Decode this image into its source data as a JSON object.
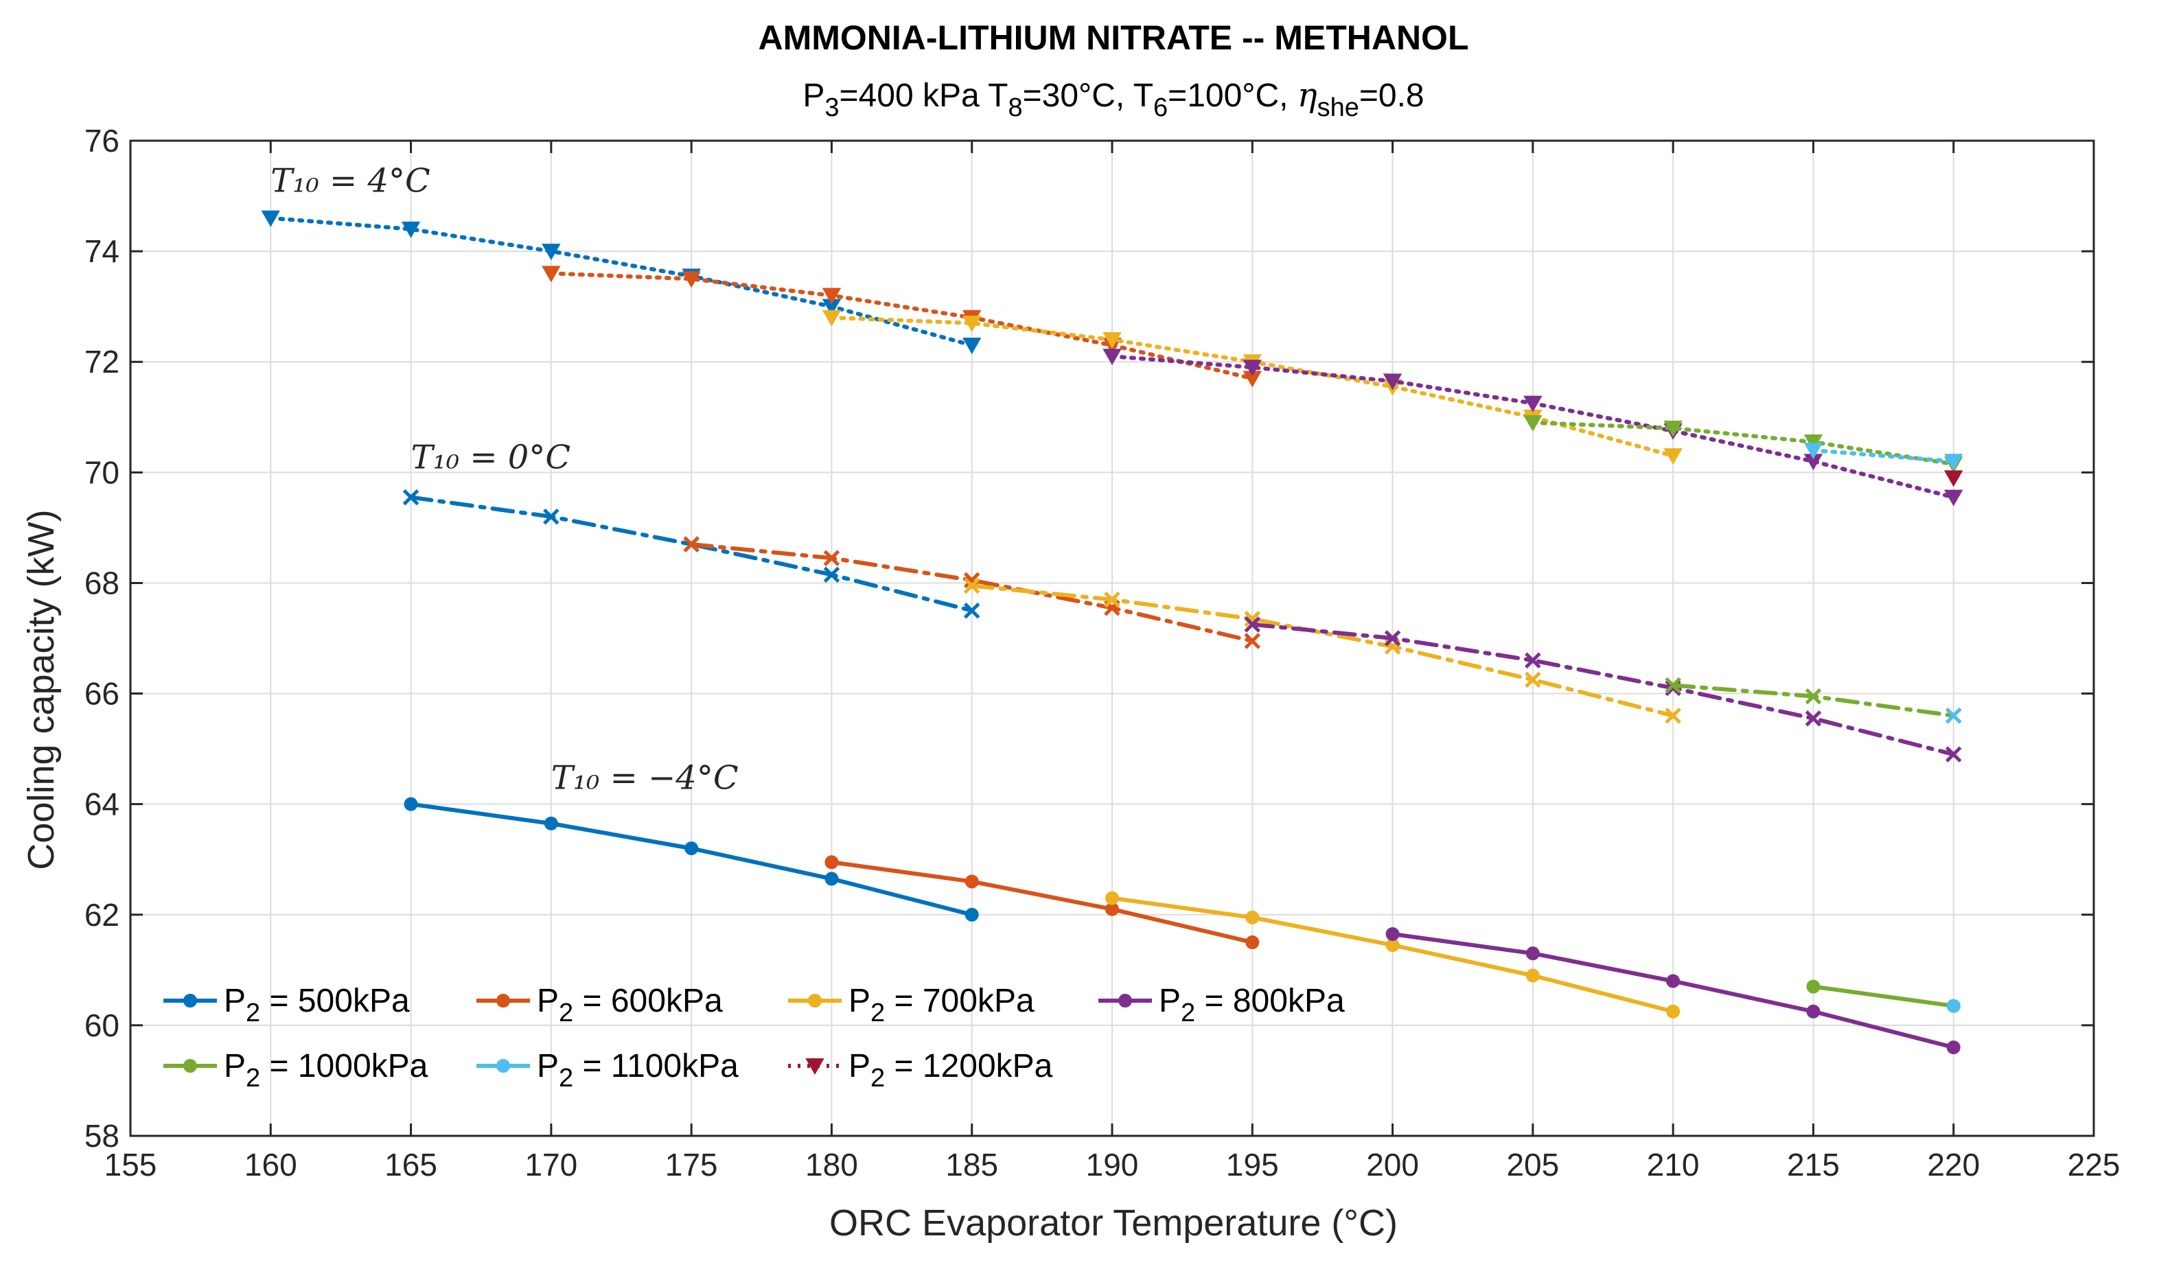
{
  "chart_data": {
    "type": "line",
    "title": "AMMONIA-LITHIUM NITRATE -- METHANOL",
    "subtitle_parts": [
      "P",
      "3",
      "=400 kPa T",
      "8",
      "=30°C, T",
      "6",
      "=100°C, ",
      "η",
      "she",
      "=0.8"
    ],
    "xlabel": "ORC Evaporator Temperature (°C)",
    "ylabel": "Cooling capacity (kW)",
    "xlim": [
      155,
      225
    ],
    "ylim": [
      58,
      76
    ],
    "xticks": [
      155,
      160,
      165,
      170,
      175,
      180,
      185,
      190,
      195,
      200,
      205,
      210,
      215,
      220,
      225
    ],
    "yticks": [
      58,
      60,
      62,
      64,
      66,
      68,
      70,
      72,
      74,
      76
    ],
    "grid": true,
    "legend_placement": "bottom-left",
    "colors": {
      "500": "#0072BD",
      "600": "#D95319",
      "700": "#EDB120",
      "800": "#7E2F8E",
      "1000": "#77AC30",
      "1100": "#4DBEEE",
      "1200": "#A2142F"
    },
    "legend": [
      {
        "key": "500",
        "label_pre": "P",
        "label_sub": "2",
        "label_post": " = 500kPa",
        "marker": "o",
        "style": "solid"
      },
      {
        "key": "600",
        "label_pre": "P",
        "label_sub": "2",
        "label_post": " = 600kPa",
        "marker": "o",
        "style": "solid"
      },
      {
        "key": "700",
        "label_pre": "P",
        "label_sub": "2",
        "label_post": " = 700kPa",
        "marker": "o",
        "style": "solid"
      },
      {
        "key": "800",
        "label_pre": "P",
        "label_sub": "2",
        "label_post": " = 800kPa",
        "marker": "o",
        "style": "solid"
      },
      {
        "key": "1000",
        "label_pre": "P",
        "label_sub": "2",
        "label_post": " = 1000kPa",
        "marker": "o",
        "style": "solid"
      },
      {
        "key": "1100",
        "label_pre": "P",
        "label_sub": "2",
        "label_post": " = 1100kPa",
        "marker": "o",
        "style": "solid"
      },
      {
        "key": "1200",
        "label_pre": "P",
        "label_sub": "2",
        "label_post": " = 1200kPa",
        "marker": "v",
        "style": "dotted"
      }
    ],
    "annotations": [
      {
        "text": "T₁₀ = 4°C",
        "x": 160,
        "y": 75.0
      },
      {
        "text": "T₁₀ = 0°C",
        "x": 165,
        "y": 70.0
      },
      {
        "text": "T₁₀ = −4°C",
        "x": 170,
        "y": 64.2
      }
    ],
    "series": [
      {
        "key": "500",
        "group": "T10=4",
        "marker": "v",
        "style": "dotted",
        "x": [
          160,
          165,
          170,
          175,
          180,
          185
        ],
        "y": [
          74.6,
          74.4,
          74.0,
          73.55,
          73.0,
          72.3
        ]
      },
      {
        "key": "600",
        "group": "T10=4",
        "marker": "v",
        "style": "dotted",
        "x": [
          170,
          175,
          180,
          185,
          190,
          195
        ],
        "y": [
          73.6,
          73.5,
          73.2,
          72.8,
          72.3,
          71.7
        ]
      },
      {
        "key": "700",
        "group": "T10=4",
        "marker": "v",
        "style": "dotted",
        "x": [
          180,
          185,
          190,
          195,
          200,
          205,
          210
        ],
        "y": [
          72.8,
          72.7,
          72.4,
          72.0,
          71.55,
          71.0,
          70.3
        ]
      },
      {
        "key": "800",
        "group": "T10=4",
        "marker": "v",
        "style": "dotted",
        "x": [
          190,
          195,
          200,
          205,
          210,
          215,
          220
        ],
        "y": [
          72.1,
          71.9,
          71.65,
          71.25,
          70.75,
          70.2,
          69.55
        ]
      },
      {
        "key": "1000",
        "group": "T10=4",
        "marker": "v",
        "style": "dotted",
        "x": [
          205,
          210,
          215,
          220
        ],
        "y": [
          70.9,
          70.8,
          70.55,
          70.15
        ]
      },
      {
        "key": "1100",
        "group": "T10=4",
        "marker": "v",
        "style": "dotted",
        "x": [
          215,
          220
        ],
        "y": [
          70.4,
          70.2
        ]
      },
      {
        "key": "1200",
        "group": "T10=4",
        "marker": "v",
        "style": "dotted",
        "x": [
          220
        ],
        "y": [
          69.9
        ]
      },
      {
        "key": "500",
        "group": "T10=0",
        "marker": "x",
        "style": "dashdot",
        "x": [
          165,
          170,
          175,
          180,
          185
        ],
        "y": [
          69.55,
          69.2,
          68.7,
          68.15,
          67.5
        ]
      },
      {
        "key": "600",
        "group": "T10=0",
        "marker": "x",
        "style": "dashdot",
        "x": [
          175,
          180,
          185,
          190,
          195
        ],
        "y": [
          68.7,
          68.45,
          68.05,
          67.55,
          66.95
        ]
      },
      {
        "key": "700",
        "group": "T10=0",
        "marker": "x",
        "style": "dashdot",
        "x": [
          185,
          190,
          195,
          200,
          205,
          210
        ],
        "y": [
          67.95,
          67.7,
          67.35,
          66.85,
          66.25,
          65.6
        ]
      },
      {
        "key": "800",
        "group": "T10=0",
        "marker": "x",
        "style": "dashdot",
        "x": [
          195,
          200,
          205,
          210,
          215,
          220
        ],
        "y": [
          67.25,
          67.0,
          66.6,
          66.1,
          65.55,
          64.9
        ]
      },
      {
        "key": "1000",
        "group": "T10=0",
        "marker": "x",
        "style": "dashdot",
        "x": [
          210,
          215,
          220
        ],
        "y": [
          66.15,
          65.95,
          65.6
        ]
      },
      {
        "key": "1100",
        "group": "T10=0",
        "marker": "x",
        "style": "dashdot",
        "x": [
          220
        ],
        "y": [
          65.6
        ]
      },
      {
        "key": "500",
        "group": "T10=-4",
        "marker": "o",
        "style": "solid",
        "x": [
          165,
          170,
          175,
          180,
          185
        ],
        "y": [
          64.0,
          63.65,
          63.2,
          62.65,
          62.0
        ]
      },
      {
        "key": "600",
        "group": "T10=-4",
        "marker": "o",
        "style": "solid",
        "x": [
          180,
          185,
          190,
          195
        ],
        "y": [
          62.95,
          62.6,
          62.1,
          61.5
        ]
      },
      {
        "key": "700",
        "group": "T10=-4",
        "marker": "o",
        "style": "solid",
        "x": [
          190,
          195,
          200,
          205,
          210
        ],
        "y": [
          62.3,
          61.95,
          61.45,
          60.9,
          60.25
        ]
      },
      {
        "key": "800",
        "group": "T10=-4",
        "marker": "o",
        "style": "solid",
        "x": [
          200,
          205,
          210,
          215,
          220
        ],
        "y": [
          61.65,
          61.3,
          60.8,
          60.25,
          59.6
        ]
      },
      {
        "key": "1000",
        "group": "T10=-4",
        "marker": "o",
        "style": "solid",
        "x": [
          215,
          220
        ],
        "y": [
          60.7,
          60.35
        ]
      },
      {
        "key": "1100",
        "group": "T10=-4",
        "marker": "o",
        "style": "solid",
        "x": [
          220
        ],
        "y": [
          60.35
        ]
      }
    ]
  }
}
